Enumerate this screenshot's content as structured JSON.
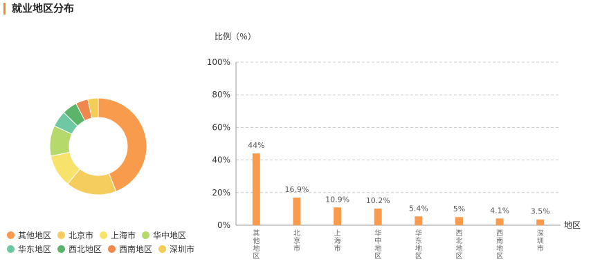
{
  "title": "就业地区分布",
  "chart_data": [
    {
      "type": "pie",
      "variant": "donut",
      "labels": [
        "其他地区",
        "北京市",
        "上海市",
        "华中地区",
        "华东地区",
        "西北地区",
        "西南地区",
        "深圳市"
      ],
      "values": [
        44,
        16.9,
        10.9,
        10.2,
        5.4,
        5,
        4.1,
        3.5
      ],
      "colors": [
        "#f99b4d",
        "#f5cd5e",
        "#f7e36b",
        "#b5d96b",
        "#6dc8a3",
        "#5cb36a",
        "#f0884e",
        "#f3cd55"
      ],
      "legend_position": "bottom-left"
    },
    {
      "type": "bar",
      "categories": [
        "其他地区",
        "北京市",
        "上海市",
        "华中地区",
        "华东地区",
        "西北地区",
        "西南地区",
        "深圳市"
      ],
      "values": [
        44,
        16.9,
        10.9,
        10.2,
        5.4,
        5,
        4.1,
        3.5
      ],
      "value_labels": [
        "44%",
        "16.9%",
        "10.9%",
        "10.2%",
        "5.4%",
        "5%",
        "4.1%",
        "3.5%"
      ],
      "ylabel": "比例（％）",
      "xlabel": "地区",
      "ylim": [
        0,
        100
      ],
      "yticks": [
        "0%",
        "20%",
        "40%",
        "60%",
        "80%",
        "100%"
      ],
      "grid": true,
      "bar_color": "#f99b4d"
    }
  ]
}
